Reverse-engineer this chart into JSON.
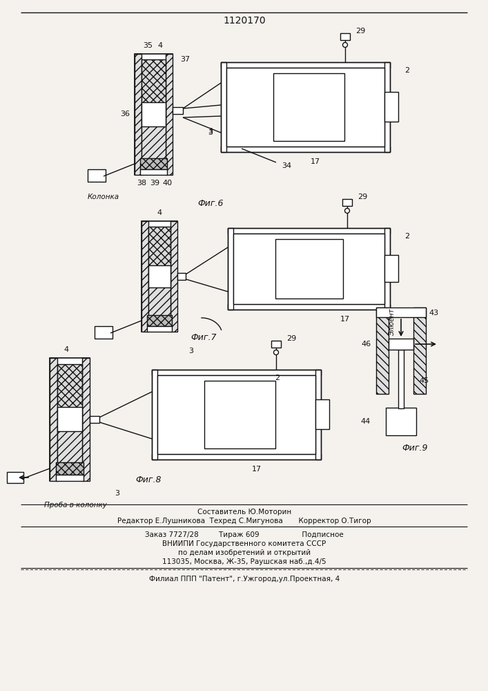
{
  "title": "1120170",
  "bg": "#f5f2ee",
  "lc": "#111111",
  "fig6_label": "Фиг.6",
  "fig7_label": "Фиг.7",
  "fig8_label": "Фиг.8",
  "fig9_label": "Фиг.9",
  "kolonna_label": "Колонка",
  "proba_label": "Проба в колонку",
  "eluent_label": "Элюент",
  "footer": [
    "Составитель Ю.Моторин",
    "Редактор Е.Лушникова  Техред С.Мигунова       Корректор О.Тигор",
    "Заказ 7727/28         Тираж 609                   Подписное",
    "ВНИИПИ Государственного комитета СССР",
    "по делам изобретений и открытий",
    "113035, Москва, Ж-35, Раушская наб.,д.4/5",
    "Филиал ППП \"Патент\", г.Ужгород,ул.Проектная, 4"
  ]
}
